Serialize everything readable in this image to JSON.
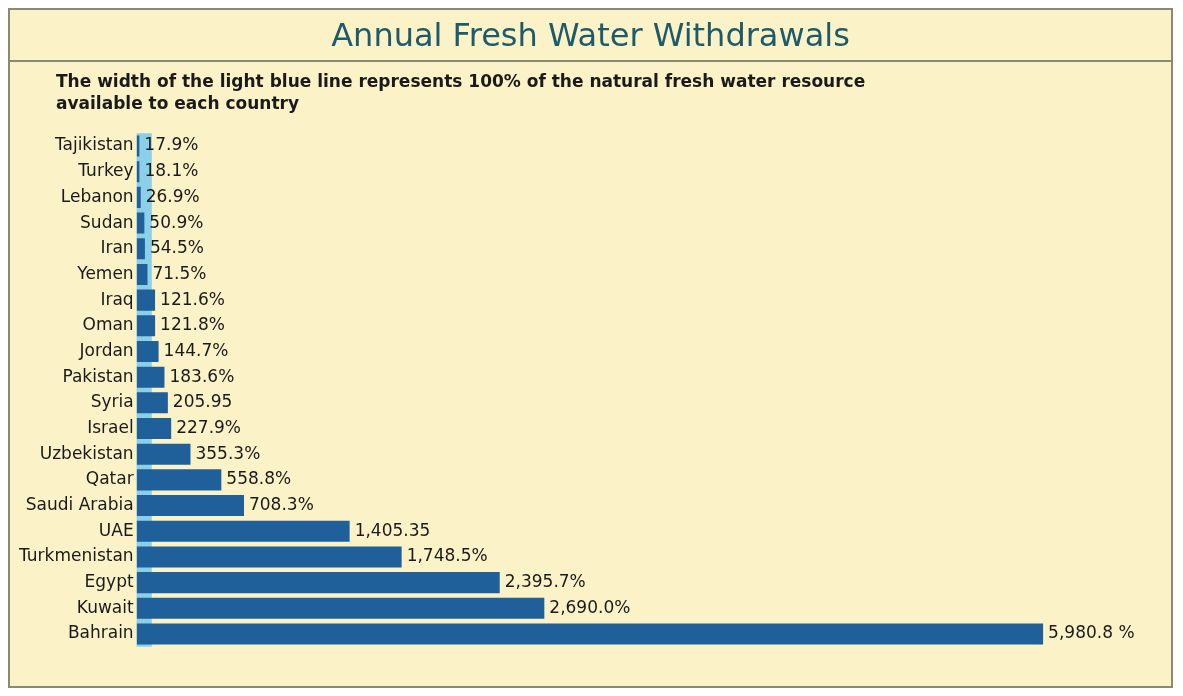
{
  "chart_data": {
    "type": "bar",
    "orientation": "horizontal",
    "title": "Annual Fresh Water Withdrawals",
    "subtitle": "The width of the light blue line represents 100% of the natural fresh water resource available to each country",
    "categories": [
      "Tajikistan",
      "Turkey",
      "Lebanon",
      "Sudan",
      "Iran",
      "Yemen",
      "Iraq",
      "Oman",
      "Jordan",
      "Pakistan",
      "Syria",
      "Israel",
      "Uzbekistan",
      "Qatar",
      "Saudi Arabia",
      "UAE",
      "Turkmenistan",
      "Egypt",
      "Kuwait",
      "Bahrain"
    ],
    "values": [
      17.9,
      18.1,
      26.9,
      50.9,
      54.5,
      71.5,
      121.6,
      121.8,
      144.7,
      183.6,
      205.95,
      227.9,
      355.3,
      558.8,
      708.3,
      1405.35,
      1748.5,
      2395.7,
      2690.0,
      5980.8
    ],
    "value_labels": [
      "17.9%",
      "18.1%",
      "26.9%",
      "50.9%",
      "54.5%",
      "71.5%",
      "121.6%",
      "121.8%",
      "144.7%",
      "183.6%",
      "205.95",
      "227.9%",
      "355.3%",
      "558.8%",
      "708.3%",
      "1,405.35",
      "1,748.5%",
      "2,395.7%",
      "2,690.0%",
      "5,980.8 %"
    ],
    "color": "#1f5f9a",
    "bands": [
      {
        "axis": "x",
        "from": 0,
        "to": 100,
        "color": "#8ccfe8"
      }
    ],
    "tick_labels": "y",
    "grid": false,
    "legend": false
  }
}
